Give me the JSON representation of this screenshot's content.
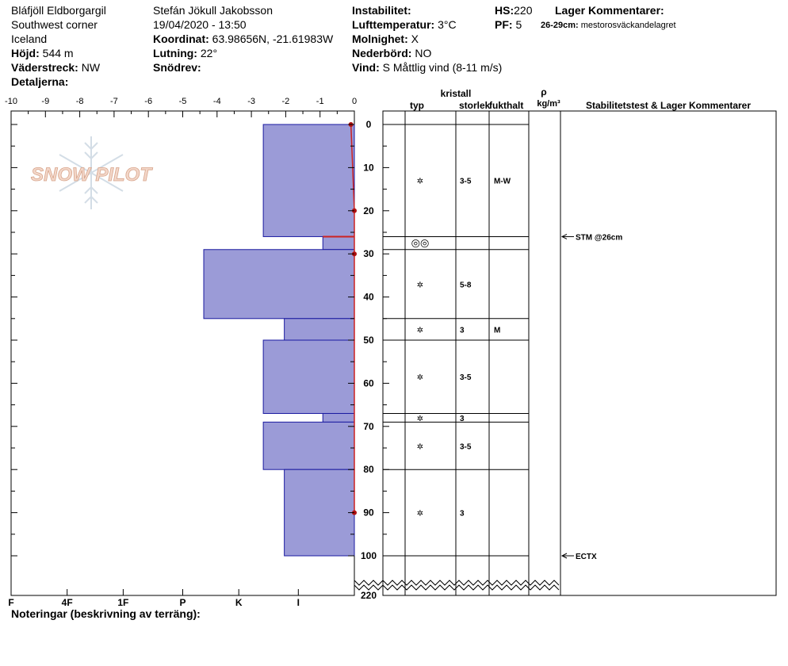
{
  "header": {
    "location": "Bláfjöll Eldborgargil",
    "region": "Southwest corner",
    "country": "Iceland",
    "elevation_label": "Höjd:",
    "elevation_value": "544 m",
    "aspect_label": "Väderstreck:",
    "aspect_value": "NW",
    "details_label": "Detaljerna:",
    "observer": "Stefán Jökull Jakobsson",
    "datetime": "19/04/2020 - 13:50",
    "coord_label": "Koordinat:",
    "coord_value": "63.98656N, -21.61983W",
    "slope_label": "Lutning:",
    "slope_value": "22°",
    "drift_label": "Snödrev:",
    "drift_value": "",
    "instability_label": "Instabilitet:",
    "instability_value": "",
    "airtemp_label": "Lufttemperatur:",
    "airtemp_value": "3°C",
    "cloud_label": "Molnighet:",
    "cloud_value": "X",
    "precip_label": "Nederbörd:",
    "precip_value": "NO",
    "wind_label": "Vind:",
    "wind_value": "S Måttlig vind (8-11 m/s)",
    "hs_label": "HS:",
    "hs_value": "220",
    "pf_label": "PF:",
    "pf_value": "5",
    "layer_comments_label": "Lager Kommentarer:",
    "layer_comment_range": "26-29cm:",
    "layer_comment_text": "mestorosväckandelagret"
  },
  "notes_label": "Noteringar (beskrivning av terräng):",
  "watermark": "SNOW PILOT",
  "colors": {
    "hardness_fill": "#9b9bd7",
    "hardness_stroke": "#1a1aa0",
    "temp_line": "#cc2222",
    "temp_point": "#b01010"
  },
  "chart_data": {
    "type": "snow_profile",
    "temperature_axis": {
      "ticks": [
        "-10",
        "-9",
        "-8",
        "-7",
        "-6",
        "-5",
        "-4",
        "-3",
        "-2",
        "-1",
        "0"
      ],
      "range": [
        -10,
        0
      ]
    },
    "depth_axis": {
      "ticks": [
        "0",
        "10",
        "20",
        "30",
        "40",
        "50",
        "60",
        "70",
        "80",
        "90",
        "100"
      ],
      "range": [
        0,
        100
      ],
      "break_value": "220"
    },
    "hardness_axis": {
      "ticks": [
        "I",
        "K",
        "P",
        "1F",
        "4F",
        "F"
      ],
      "values": [
        7,
        5.3,
        3.7,
        2,
        0.4,
        -1.2
      ],
      "range": [
        -1.2,
        8.6
      ]
    },
    "hardness_layers": [
      {
        "top": 0,
        "bottom": 26,
        "hardness": 6
      },
      {
        "top": 26,
        "bottom": 29,
        "hardness": 7.7
      },
      {
        "top": 29,
        "bottom": 45,
        "hardness": 4.3
      },
      {
        "top": 45,
        "bottom": 50,
        "hardness": 6.6
      },
      {
        "top": 50,
        "bottom": 67,
        "hardness": 6
      },
      {
        "top": 67,
        "bottom": 69,
        "hardness": 7.7
      },
      {
        "top": 69,
        "bottom": 80,
        "hardness": 6
      },
      {
        "top": 80,
        "bottom": 100,
        "hardness": 6.6
      }
    ],
    "critical_layer_depth": 26,
    "temperature_profile": [
      {
        "depth": 0,
        "temp": -0.1
      },
      {
        "depth": 20,
        "temp": 0
      },
      {
        "depth": 30,
        "temp": 0
      },
      {
        "depth": 90,
        "temp": 0
      }
    ],
    "table_headers": {
      "crystal_label": "kristall",
      "type_label": "typ",
      "size_label": "storlek",
      "moisture_label": "fukthalt",
      "density_symbol": "ρ",
      "density_unit": "kg/m³",
      "comments_label": "Stabilitetstest & Lager Kommentarer"
    },
    "table_rows": [
      {
        "top": 0,
        "bottom": 26,
        "type": "✲",
        "size": "3-5",
        "moisture": "M-W"
      },
      {
        "top": 26,
        "bottom": 29,
        "type": "◎◎",
        "size": "",
        "moisture": ""
      },
      {
        "top": 29,
        "bottom": 45,
        "type": "✲",
        "size": "5-8",
        "moisture": ""
      },
      {
        "top": 45,
        "bottom": 50,
        "type": "✲",
        "size": "3",
        "moisture": "M"
      },
      {
        "top": 50,
        "bottom": 67,
        "type": "✲",
        "size": "3-5",
        "moisture": ""
      },
      {
        "top": 67,
        "bottom": 69,
        "type": "✲",
        "size": "3",
        "moisture": ""
      },
      {
        "top": 69,
        "bottom": 80,
        "type": "✲",
        "size": "3-5",
        "moisture": ""
      },
      {
        "top": 80,
        "bottom": 100,
        "type": "✲",
        "size": "3",
        "moisture": ""
      }
    ],
    "tests": [
      {
        "depth": 26,
        "label": "STM @26cm"
      },
      {
        "depth": 100,
        "label": "ECTX"
      }
    ]
  }
}
